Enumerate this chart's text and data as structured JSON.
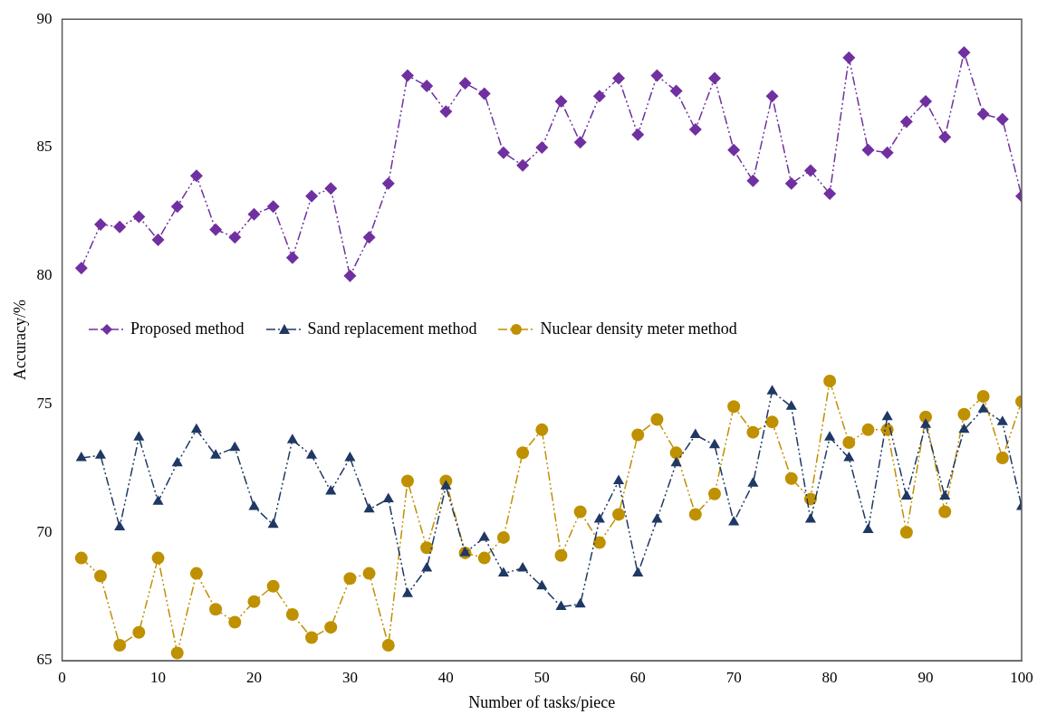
{
  "chart_data": {
    "type": "line",
    "xlabel": "Number of tasks/piece",
    "ylabel": "Accuracy/%",
    "x": [
      2,
      4,
      6,
      8,
      10,
      12,
      14,
      16,
      18,
      20,
      22,
      24,
      26,
      28,
      30,
      32,
      34,
      36,
      38,
      40,
      42,
      44,
      46,
      48,
      50,
      52,
      54,
      56,
      58,
      60,
      62,
      64,
      66,
      68,
      70,
      72,
      74,
      76,
      78,
      80,
      82,
      84,
      86,
      88,
      90,
      92,
      94,
      96,
      98,
      100
    ],
    "series": [
      {
        "name": "Proposed method",
        "color": "#7030a0",
        "marker": "diamond",
        "values": [
          80.3,
          82.0,
          81.9,
          82.3,
          81.4,
          82.7,
          83.9,
          81.8,
          81.5,
          82.4,
          82.7,
          80.7,
          83.1,
          83.4,
          80.0,
          81.5,
          83.6,
          87.8,
          87.4,
          86.4,
          87.5,
          87.1,
          84.8,
          84.3,
          85.0,
          86.8,
          85.2,
          87.0,
          87.7,
          85.5,
          87.8,
          87.2,
          85.7,
          87.7,
          84.9,
          83.7,
          87.0,
          83.6,
          84.1,
          83.2,
          88.5,
          84.9,
          84.8,
          86.0,
          86.8,
          85.4,
          88.7,
          86.3,
          86.1,
          83.1
        ]
      },
      {
        "name": "Sand replacement method",
        "color": "#1f3864",
        "marker": "triangle",
        "values": [
          72.9,
          73.0,
          70.2,
          73.7,
          71.2,
          72.7,
          74.0,
          73.0,
          73.3,
          71.0,
          70.3,
          73.6,
          73.0,
          71.6,
          72.9,
          70.9,
          71.3,
          67.6,
          68.6,
          71.8,
          69.2,
          69.8,
          68.4,
          68.6,
          67.9,
          67.1,
          67.2,
          70.5,
          72.0,
          68.4,
          70.5,
          72.7,
          73.8,
          73.4,
          70.4,
          71.9,
          75.5,
          74.9,
          70.5,
          73.7,
          72.9,
          70.1,
          74.5,
          71.4,
          74.2,
          71.4,
          74.0,
          74.8,
          74.3,
          71.0
        ]
      },
      {
        "name": "Nuclear density meter method",
        "color": "#bf9000",
        "marker": "circle",
        "values": [
          69.0,
          68.3,
          65.6,
          66.1,
          69.0,
          65.3,
          68.4,
          67.0,
          66.5,
          67.3,
          67.9,
          66.8,
          65.9,
          66.3,
          68.2,
          68.4,
          65.6,
          72.0,
          69.4,
          72.0,
          69.2,
          69.0,
          69.8,
          73.1,
          74.0,
          69.1,
          70.8,
          69.6,
          70.7,
          73.8,
          74.4,
          73.1,
          70.7,
          71.5,
          74.9,
          73.9,
          74.3,
          72.1,
          71.3,
          75.9,
          73.5,
          74.0,
          74.0,
          70.0,
          74.5,
          70.8,
          74.6,
          75.3,
          72.9,
          75.1
        ]
      }
    ],
    "xlim": [
      0,
      100
    ],
    "xticks": [
      0,
      10,
      20,
      30,
      40,
      50,
      60,
      70,
      80,
      90,
      100
    ],
    "ylim": [
      65,
      90
    ],
    "yticks": [
      65,
      70,
      75,
      80,
      85,
      90
    ],
    "grid": false,
    "legend": "left",
    "line_style": "dashed"
  }
}
